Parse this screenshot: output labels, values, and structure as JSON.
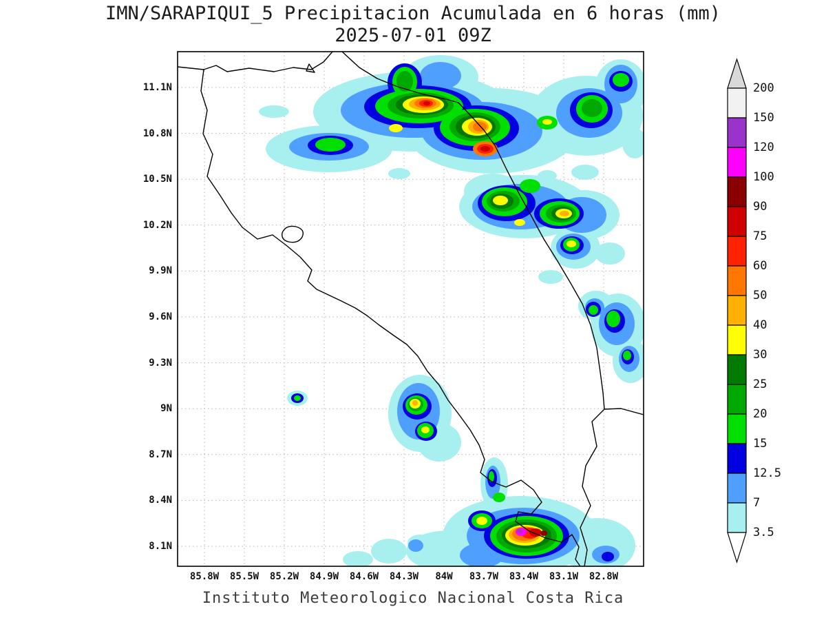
{
  "header": {
    "title": "IMN/SARAPIQUI_5 Precipitacion Acumulada en 6 horas (mm)",
    "subtitle": "2025-07-01 09Z"
  },
  "footer": {
    "credit": "Instituto Meteorologico Nacional Costa Rica"
  },
  "map": {
    "y_ticks": [
      "11.1N",
      "10.8N",
      "10.5N",
      "10.2N",
      "9.9N",
      "9.6N",
      "9.3N",
      "9N",
      "8.7N",
      "8.4N",
      "8.1N"
    ],
    "x_ticks": [
      "85.8W",
      "85.5W",
      "85.2W",
      "84.9W",
      "84.6W",
      "84.3W",
      "84W",
      "83.7W",
      "83.4W",
      "83.1W",
      "82.8W"
    ]
  },
  "legend": {
    "levels": [
      "200",
      "150",
      "120",
      "100",
      "90",
      "75",
      "60",
      "50",
      "40",
      "30",
      "25",
      "20",
      "15",
      "12.5",
      "7",
      "3.5"
    ],
    "segment_colors_top_to_bottom": [
      "#f2f2f2",
      "#9933cc",
      "#ff00ff",
      "#8a0000",
      "#d00000",
      "#ff2200",
      "#ff7700",
      "#ffb000",
      "#ffff00",
      "#007a00",
      "#00a800",
      "#00e000",
      "#0000e0",
      "#4f9fff",
      "#a8f0f0"
    ],
    "arrow_top_color": "#d9d9d9",
    "arrow_bottom_color": "#ffffff"
  },
  "chart_data": {
    "type": "heatmap",
    "title": "IMN/SARAPIQUI_5 Precipitacion Acumulada en 6 horas (mm)",
    "valid_time": "2025-07-01 09Z",
    "units": "mm",
    "lat_range": [
      8.0,
      11.25
    ],
    "lon_range": [
      -85.95,
      -82.55
    ],
    "levels_mm": [
      3.5,
      7,
      12.5,
      15,
      20,
      25,
      30,
      40,
      50,
      60,
      75,
      90,
      100,
      120,
      150,
      200
    ],
    "interval_colors_low_to_high": [
      "#a8f0f0",
      "#4f9fff",
      "#0000e0",
      "#00e000",
      "#00a800",
      "#007a00",
      "#ffff00",
      "#ffb000",
      "#ff7700",
      "#ff2200",
      "#d00000",
      "#8a0000",
      "#ff00ff",
      "#9933cc",
      "#f2f2f2"
    ],
    "precip_cells": [
      {
        "lat": 10.95,
        "lon": -84.35,
        "peak_mm": 75
      },
      {
        "lat": 10.7,
        "lon": -83.7,
        "peak_mm": 90
      },
      {
        "lat": 11.05,
        "lon": -84.45,
        "peak_mm": 25
      },
      {
        "lat": 10.95,
        "lon": -82.95,
        "peak_mm": 25
      },
      {
        "lat": 10.35,
        "lon": -83.55,
        "peak_mm": 50
      },
      {
        "lat": 10.3,
        "lon": -83.1,
        "peak_mm": 60
      },
      {
        "lat": 10.25,
        "lon": -83.0,
        "peak_mm": 40
      },
      {
        "lat": 9.55,
        "lon": -82.65,
        "peak_mm": 25
      },
      {
        "lat": 9.0,
        "lon": -84.2,
        "peak_mm": 50
      },
      {
        "lat": 9.1,
        "lon": -84.95,
        "peak_mm": 20
      },
      {
        "lat": 8.55,
        "lon": -83.8,
        "peak_mm": 30
      },
      {
        "lat": 8.15,
        "lon": -83.35,
        "peak_mm": 150
      }
    ],
    "grid": "dotted",
    "legend_position": "right"
  }
}
